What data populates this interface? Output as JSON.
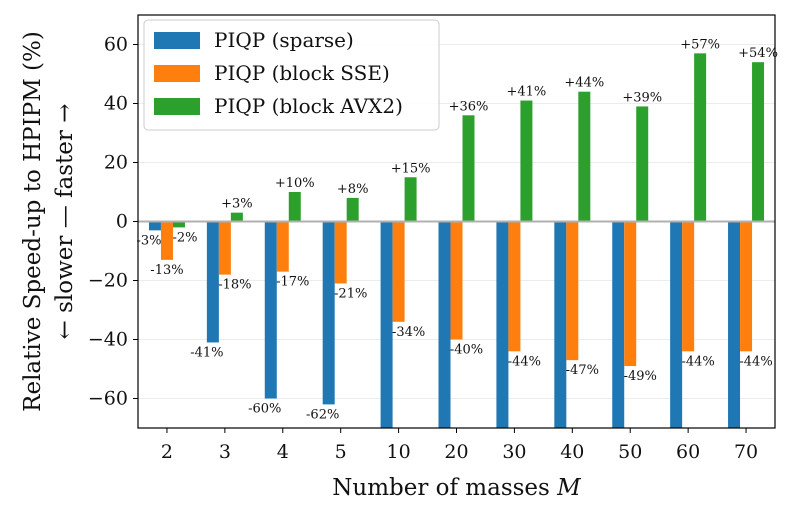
{
  "chart_data": {
    "type": "bar",
    "title": "",
    "xlabel": "Number of masses M",
    "xlabel_main": "Number of masses ",
    "xlabel_var": "M",
    "ylabel_line1": "Relative Speed-up to HPIPM (%)",
    "ylabel_line2": "← slower — faster →",
    "ylim": [
      -70,
      70
    ],
    "yticks": [
      -60,
      -40,
      -20,
      0,
      20,
      40,
      60
    ],
    "ytick_labels": [
      "−60",
      "−40",
      "−20",
      "0",
      "20",
      "40",
      "60"
    ],
    "grid": true,
    "legend_position": "top-left",
    "categories": [
      "2",
      "3",
      "4",
      "5",
      "10",
      "20",
      "30",
      "40",
      "50",
      "60",
      "70"
    ],
    "series": [
      {
        "name": "PIQP (sparse)",
        "color": "#1f77b4",
        "values": [
          -3,
          -41,
          -60,
          -62,
          -70,
          -70,
          -70,
          -70,
          -70,
          -70,
          -70
        ],
        "labels": [
          "-3%",
          "-41%",
          "-60%",
          "-62%",
          "",
          "",
          "",
          "",
          "",
          "",
          ""
        ]
      },
      {
        "name": "PIQP (block SSE)",
        "color": "#ff7f0e",
        "values": [
          -13,
          -18,
          -17,
          -21,
          -34,
          -40,
          -44,
          -47,
          -49,
          -44,
          -44
        ],
        "labels": [
          "-13%",
          "-18%",
          "-17%",
          "-21%",
          "-34%",
          "-40%",
          "-44%",
          "-47%",
          "-49%",
          "-44%",
          "-44%"
        ]
      },
      {
        "name": "PIQP (block AVX2)",
        "color": "#2ca02c",
        "values": [
          -2,
          3,
          10,
          8,
          15,
          36,
          41,
          44,
          39,
          57,
          54
        ],
        "labels": [
          "-2%",
          "+3%",
          "+10%",
          "+8%",
          "+15%",
          "+36%",
          "+41%",
          "+44%",
          "+39%",
          "+57%",
          "+54%"
        ]
      }
    ]
  }
}
